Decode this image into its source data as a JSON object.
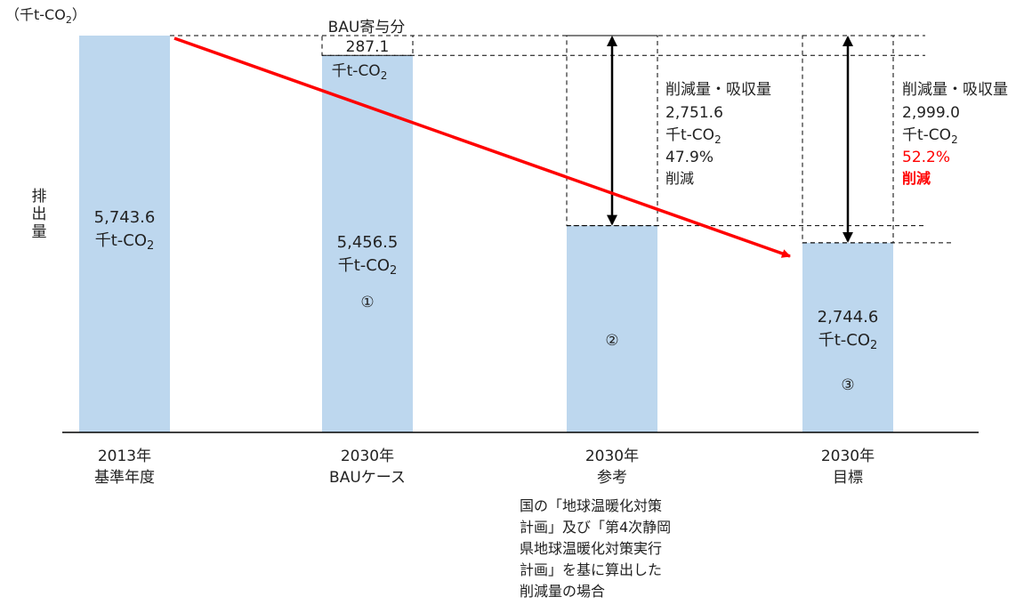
{
  "chart_data": {
    "type": "bar",
    "unit": "（千t-CO",
    "unit_sub": "2",
    "unit_close": "）",
    "ylabel": "排出量",
    "ylim": [
      0,
      5743.6
    ],
    "categories": [
      {
        "line1": "2013年",
        "line2": "基準年度"
      },
      {
        "line1": "2030年",
        "line2": "BAUケース"
      },
      {
        "line1": "2030年",
        "line2": "参考"
      },
      {
        "line1": "2030年",
        "line2": "目標"
      }
    ],
    "values": [
      5743.6,
      5456.5,
      2992.0,
      2744.6
    ],
    "bar_labels": [
      {
        "value_text": "5,743.6",
        "unit_text": "千t-CO",
        "unit_sub": "2",
        "marker": ""
      },
      {
        "value_text": "5,456.5",
        "unit_text": "千t-CO",
        "unit_sub": "2",
        "marker": "①"
      },
      {
        "value_text": "",
        "unit_text": "",
        "unit_sub": "",
        "marker": "②"
      },
      {
        "value_text": "2,744.6",
        "unit_text": "千t-CO",
        "unit_sub": "2",
        "marker": "③"
      }
    ],
    "bau_contribution": {
      "title": "BAU寄与分",
      "value": 287.1,
      "value_text": "287.1",
      "unit": "千t-CO",
      "unit_sub": "2"
    },
    "reductions": [
      {
        "label": "削減量・吸収量",
        "value_text": "2,751.6",
        "unit": "千t-CO",
        "unit_sub": "2",
        "percent": "47.9%",
        "suffix": "削減",
        "highlight": false
      },
      {
        "label": "削減量・吸収量",
        "value_text": "2,999.0",
        "unit": "千t-CO",
        "unit_sub": "2",
        "percent": "52.2%",
        "suffix": "削減",
        "highlight": true
      }
    ],
    "note_lines": [
      "国の「地球温暖化対策",
      "計画」及び「第4次静岡",
      "県地球温暖化対策実行",
      "計画」を基に算出した",
      "削減量の場合"
    ],
    "colors": {
      "bar": "#bdd7ee",
      "arrow": "#ff0000",
      "highlight": "#ff0000",
      "axis": "#000000"
    }
  }
}
